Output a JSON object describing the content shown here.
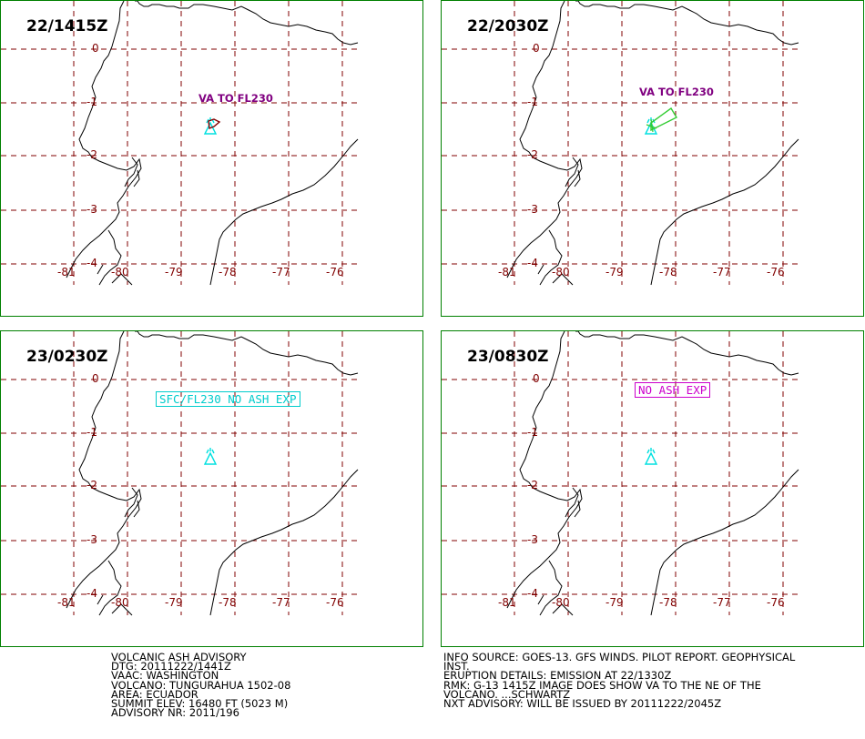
{
  "panels": [
    {
      "time": "22/1415Z",
      "annotation": "VA TO FL230",
      "annotation_style": "purple-text"
    },
    {
      "time": "22/2030Z",
      "annotation": "VA TO FL230",
      "annotation_style": "purple-text"
    },
    {
      "time": "23/0230Z",
      "annotation": "SFC/FL230 NO ASH EXP",
      "annotation_style": "cyan-box"
    },
    {
      "time": "23/0830Z",
      "annotation": "NO ASH EXP",
      "annotation_style": "magenta-box"
    }
  ],
  "lat_labels": [
    "0",
    "-1",
    "-2",
    "-3",
    "-4"
  ],
  "lon_labels": [
    "-81",
    "-80",
    "-79",
    "-78",
    "-77",
    "-76"
  ],
  "left_text": [
    "VOLCANIC ASH ADVISORY",
    "DTG: 20111222/1441Z",
    "VAAC: WASHINGTON",
    "VOLCANO: TUNGURAHUA 1502-08",
    "AREA: ECUADOR",
    "SUMMIT ELEV: 16480 FT (5023 M)",
    "ADVISORY NR: 2011/196"
  ],
  "right_text": [
    "INFO SOURCE: GOES-13. GFS WINDS. PILOT REPORT. GEOPHYSICAL",
    "INST.",
    "ERUPTION DETAILS: EMISSION AT 22/1330Z",
    "RMK: G-13 1415Z IMAGE DOES SHOW VA TO THE NE OF THE",
    "VOLCANO. ...SCHWARTZ",
    "NXT ADVISORY: WILL BE ISSUED BY 20111222/2045Z"
  ],
  "colors": {
    "panel_border": "#008000",
    "grid": "#800000",
    "volcano": "#00e0e0",
    "ash_obs": "#800000",
    "ash_fcst": "#33cc33",
    "annotation_purple": "#800080",
    "annotation_cyan": "#00cccc",
    "annotation_magenta": "#cc00cc"
  },
  "icons": {
    "volcano": "volcano-triangle-icon"
  }
}
